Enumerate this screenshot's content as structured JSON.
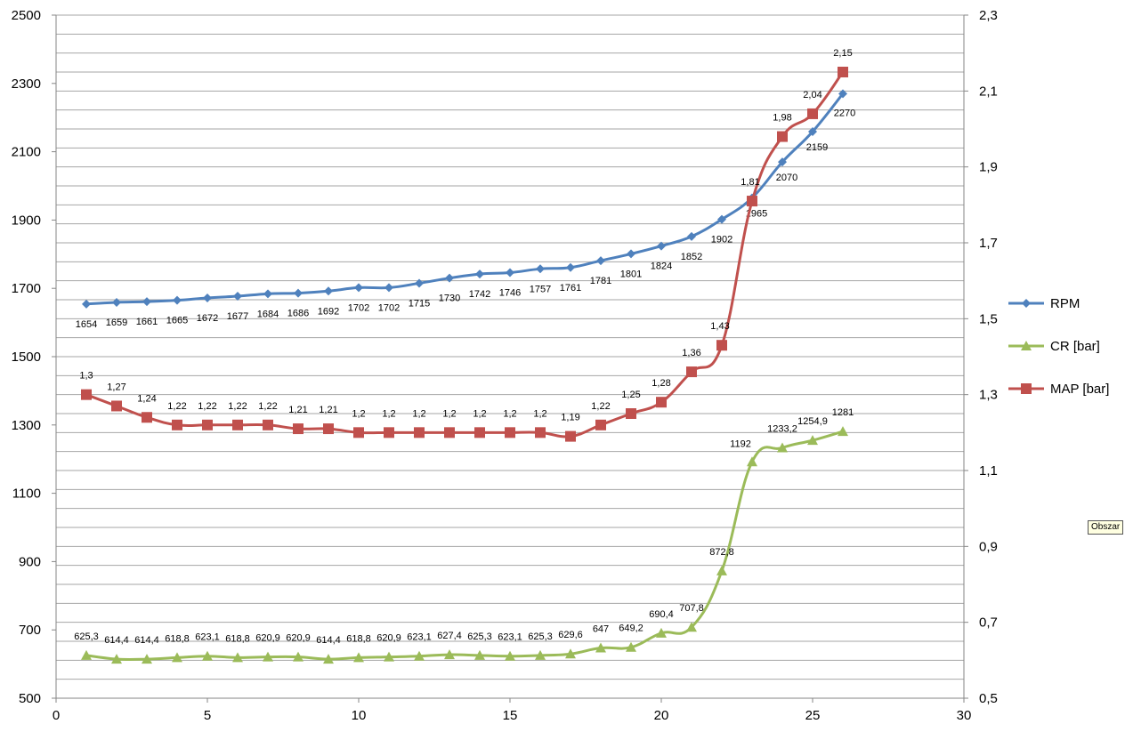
{
  "tooltip": "Obszar",
  "chart_data": {
    "type": "line",
    "x": [
      1,
      2,
      3,
      4,
      5,
      6,
      7,
      8,
      9,
      10,
      11,
      12,
      13,
      14,
      15,
      16,
      17,
      18,
      19,
      20,
      21,
      22,
      23,
      24,
      25,
      26
    ],
    "xlim": [
      0,
      30
    ],
    "xticks": [
      0,
      5,
      10,
      15,
      20,
      25,
      30
    ],
    "ylim_left": [
      500,
      2500
    ],
    "yticks_left": [
      500,
      700,
      900,
      1100,
      1300,
      1500,
      1700,
      1900,
      2100,
      2300,
      2500
    ],
    "ylim_right": [
      0.5,
      2.3
    ],
    "yticks_right": [
      "0,5",
      "0,7",
      "0,9",
      "1,1",
      "1,3",
      "1,5",
      "1,7",
      "1,9",
      "2,1",
      "2,3"
    ],
    "grid": true,
    "legend_position": "right",
    "series": [
      {
        "name": "RPM",
        "axis": "left",
        "marker": "diamond",
        "color": "#4f81bd",
        "values": [
          1654,
          1659,
          1661,
          1665,
          1672,
          1677,
          1684,
          1686,
          1692,
          1702,
          1702,
          1715,
          1730,
          1742,
          1746,
          1757,
          1761,
          1781,
          1801,
          1824,
          1852,
          1902,
          1965,
          2070,
          2159,
          2270
        ],
        "labels": [
          "1654",
          "1659",
          "1661",
          "1665",
          "1672",
          "1677",
          "1684",
          "1686",
          "1692",
          "1702",
          "1702",
          "1715",
          "1730",
          "1742",
          "1746",
          "1757",
          "1761",
          "1781",
          "1801",
          "1824",
          "1852",
          "1902",
          "1965",
          "2070",
          "2159",
          "2270"
        ]
      },
      {
        "name": "CR [bar]",
        "axis": "left",
        "marker": "triangle",
        "color": "#9bbb59",
        "values": [
          625.3,
          614.4,
          614.4,
          618.8,
          623.1,
          618.8,
          620.9,
          620.9,
          614.4,
          618.8,
          620.9,
          623.1,
          627.4,
          625.3,
          623.1,
          625.3,
          629.6,
          647,
          649.2,
          690.4,
          707.8,
          872.8,
          1192,
          1233.2,
          1254.9,
          1281
        ],
        "labels": [
          "625,3",
          "614,4",
          "614,4",
          "618,8",
          "623,1",
          "618,8",
          "620,9",
          "620,9",
          "614,4",
          "618,8",
          "620,9",
          "623,1",
          "627,4",
          "625,3",
          "623,1",
          "625,3",
          "629,6",
          "647",
          "649,2",
          "690,4",
          "707,8",
          "872,8",
          "1192",
          "1233,2",
          "1254,9",
          "1281"
        ]
      },
      {
        "name": "MAP [bar]",
        "axis": "right",
        "marker": "square",
        "color": "#c0504d",
        "values": [
          1.3,
          1.27,
          1.24,
          1.22,
          1.22,
          1.22,
          1.22,
          1.21,
          1.21,
          1.2,
          1.2,
          1.2,
          1.2,
          1.2,
          1.2,
          1.2,
          1.19,
          1.22,
          1.25,
          1.28,
          1.36,
          1.43,
          1.81,
          1.98,
          2.04,
          2.15
        ],
        "labels": [
          "1,3",
          "1,27",
          "1,24",
          "1,22",
          "1,22",
          "1,22",
          "1,22",
          "1,21",
          "1,21",
          "1,2",
          "1,2",
          "1,2",
          "1,2",
          "1,2",
          "1,2",
          "1,2",
          "1,19",
          "1,22",
          "1,25",
          "1,28",
          "1,36",
          "1,43",
          "1,81",
          "1,98",
          "2,04",
          "2,15"
        ]
      }
    ]
  }
}
